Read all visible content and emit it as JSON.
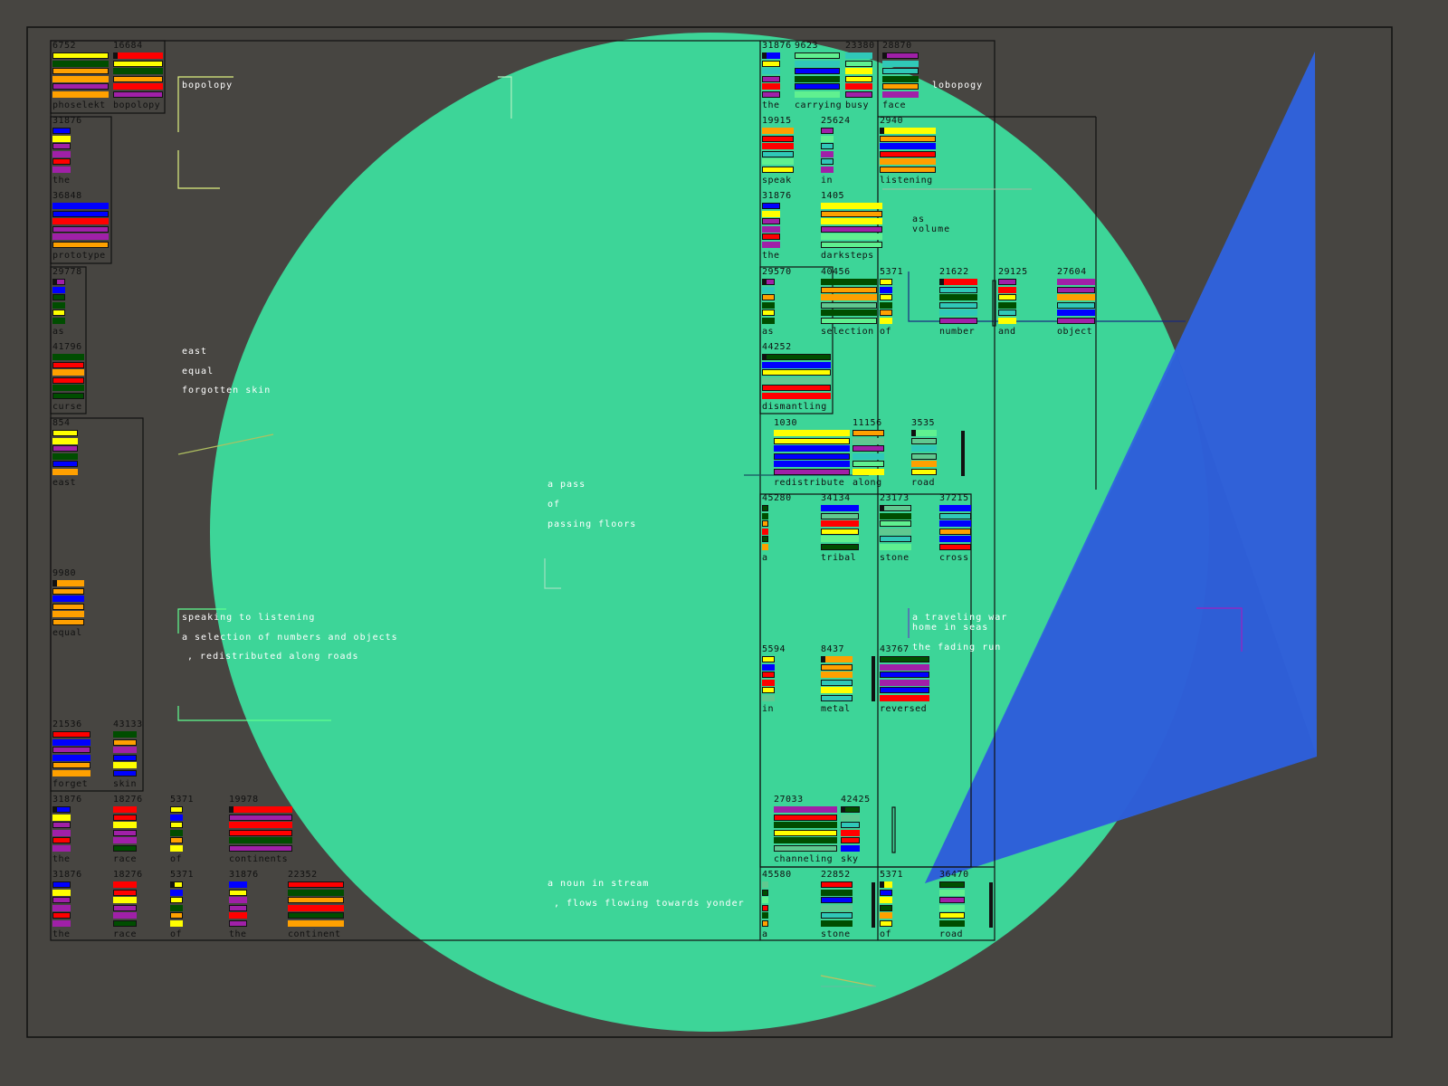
{
  "colors": {
    "background": "#474541",
    "circle": "#3dd598",
    "triangle": "#2f63e0",
    "frame": "#111111",
    "Y": "#ffff00",
    "G": "#004d00",
    "O": "#ffa000",
    "P": "#a020a8",
    "R": "#ff0000",
    "B": "#0000ff",
    "T": "#30c8b8",
    "L": "#60f090",
    "S": "#60c890"
  },
  "glyphs": [
    {
      "number": "6752",
      "word": "phoselekt",
      "bars": "YGOOPO"
    },
    {
      "number": "16684",
      "word": "bopolopy",
      "bars": "RYGORP"
    },
    {
      "number": "31876",
      "word": "the",
      "bars": "BYPPRP"
    },
    {
      "number": "36848",
      "word": "prototype",
      "bars": "BBRPPO"
    },
    {
      "number": "29778",
      "word": "as",
      "bars": "PBGGYG"
    },
    {
      "number": "41796",
      "word": "curse",
      "bars": "GRORGG"
    },
    {
      "number": "854",
      "word": "east",
      "bars": "YYPGBO"
    },
    {
      "number": "9980",
      "word": "equal",
      "bars": "OOBOOO"
    },
    {
      "number": "21536",
      "word": "forget",
      "bars": "RBPBOO"
    },
    {
      "number": "43133",
      "word": "skin",
      "bars": "GOPBYB"
    },
    {
      "number": "31876",
      "word": "the",
      "bars": "BYPPRP"
    },
    {
      "number": "18276",
      "word": "race",
      "bars": "RRYPPG"
    },
    {
      "number": "5371",
      "word": "of",
      "bars": "YBYGOY"
    },
    {
      "number": "19978",
      "word": "continents",
      "bars": "RPRRGP"
    },
    {
      "number": "31876",
      "word": "the",
      "bars": "BYPPRP"
    },
    {
      "number": "18276",
      "word": "race",
      "bars": "RRYPPG"
    },
    {
      "number": "5371",
      "word": "of",
      "bars": "YBYGOY"
    },
    {
      "number": "31876",
      "word": "the",
      "bars": "BYPPRP"
    },
    {
      "number": "22352",
      "word": "continent",
      "bars": "RGORGO"
    },
    {
      "number": "31876",
      "word": "the",
      "bars": "BYTPRP"
    },
    {
      "number": "9623",
      "word": "carrying",
      "bars": "LTBGBL"
    },
    {
      "number": "23380",
      "word": "busy",
      "bars": "TLYYRP"
    },
    {
      "number": "28870",
      "word": "face",
      "bars": "PTTGOP"
    },
    {
      "number": "19915",
      "word": "speak",
      "bars": "ORRTLY"
    },
    {
      "number": "25624",
      "word": "in",
      "bars": "PLTPTP"
    },
    {
      "number": "2940",
      "word": "listening",
      "bars": "YOBROO"
    },
    {
      "number": "31876",
      "word": "the",
      "bars": "BYPPRP"
    },
    {
      "number": "1405",
      "word": "darksteps",
      "bars": "YOYPLL"
    },
    {
      "number": "29570",
      "word": "as",
      "bars": "PTOGYG"
    },
    {
      "number": "40456",
      "word": "selection",
      "bars": "GOOSGL"
    },
    {
      "number": "5371",
      "word": "of",
      "bars": "YBYGOY"
    },
    {
      "number": "21622",
      "word": "number",
      "bars": "RTGTTP"
    },
    {
      "number": "29125",
      "word": "and",
      "bars": "PRYGTY"
    },
    {
      "number": "27604",
      "word": "object",
      "bars": "PPOTBP"
    },
    {
      "number": "44252",
      "word": "dismantling",
      "bars": "GBYSRR"
    },
    {
      "number": "1030",
      "word": "redistribute",
      "bars": "YYBBBP"
    },
    {
      "number": "11156",
      "word": "along",
      "bars": "OSPTLY"
    },
    {
      "number": "3535",
      "word": "road",
      "bars": "LSTSOY"
    },
    {
      "number": "45280",
      "word": "a",
      "bars": "GGORGO"
    },
    {
      "number": "34134",
      "word": "tribal",
      "bars": "BSRYLG"
    },
    {
      "number": "23173",
      "word": "stone",
      "bars": "SGLSTL"
    },
    {
      "number": "37215",
      "word": "cross",
      "bars": "BTBOBR"
    },
    {
      "number": "5594",
      "word": "in",
      "bars": "YBRRYS"
    },
    {
      "number": "8437",
      "word": "metal",
      "bars": "OOOTYT"
    },
    {
      "number": "43767",
      "word": "reversed",
      "bars": "GPBPBR"
    },
    {
      "number": "27033",
      "word": "channeling",
      "bars": "PRGYGS"
    },
    {
      "number": "42425",
      "word": "sky",
      "bars": "GSTRRB"
    },
    {
      "number": "45580",
      "word": "a",
      "bars": "SGLRGO"
    },
    {
      "number": "22852",
      "word": "stone",
      "bars": "RGBSTG"
    },
    {
      "number": "5371",
      "word": "of",
      "bars": "YBYGOY"
    },
    {
      "number": "36470",
      "word": "road",
      "bars": "GLPLYG"
    }
  ],
  "phrases": [
    "bopolopy",
    "lobopogy",
    "as",
    "volume",
    "east",
    "equal",
    "forgotten skin",
    "a pass",
    "of",
    "passing floors",
    "speaking to listening",
    "a selection of numbers and objects",
    ", redistributed along roads",
    "a traveling war",
    "home in seas",
    "the fading run",
    "a noun in stream",
    ", flows flowing towards yonder"
  ]
}
